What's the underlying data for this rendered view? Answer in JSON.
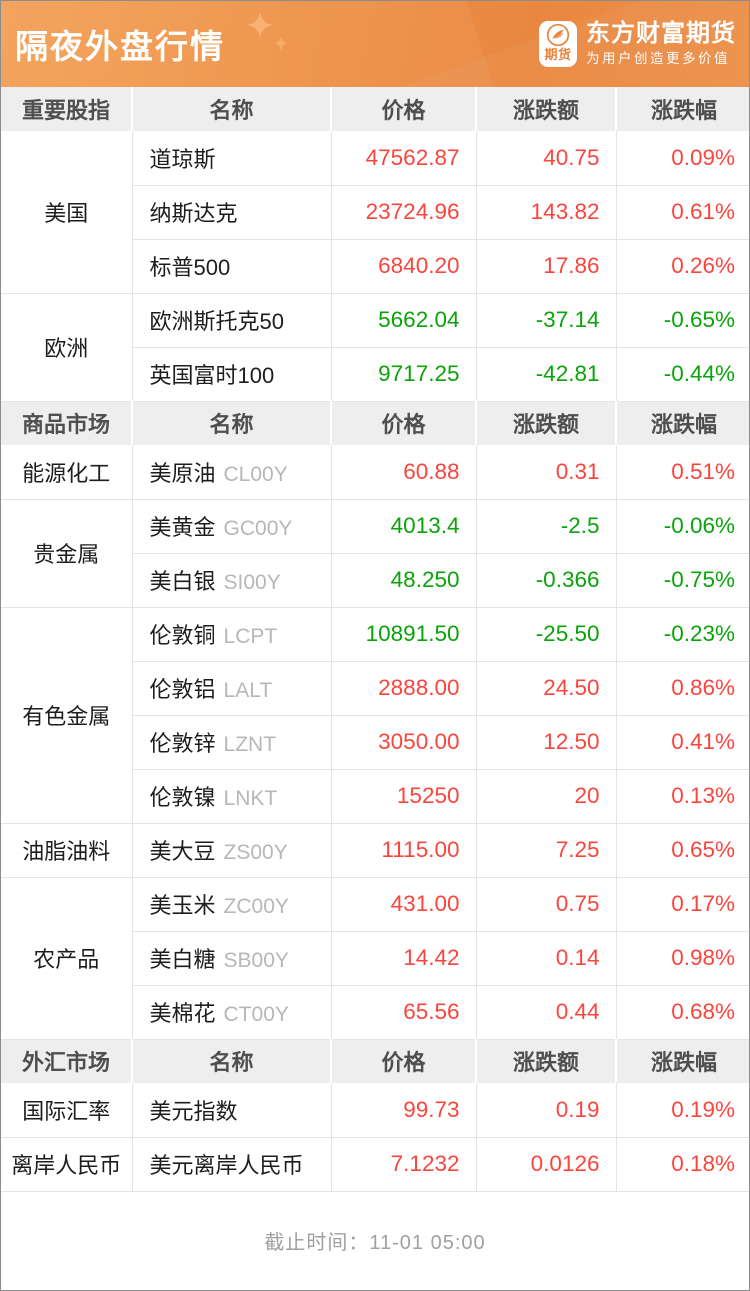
{
  "banner": {
    "title": "隔夜外盘行情",
    "logo": {
      "badge_text": "期货",
      "brand": "东方财富期货",
      "slogan": "为用户创造更多价值"
    }
  },
  "columns": {
    "name": "名称",
    "price": "价格",
    "change": "涨跌额",
    "pct": "涨跌幅"
  },
  "colors": {
    "up": "#fa453d",
    "down": "#0aa30a",
    "banner_orange": "#ee9247",
    "header_gray": "#eeeeee"
  },
  "sections": [
    {
      "label": "重要股指",
      "groups": [
        {
          "category": "美国",
          "rows": [
            {
              "name": "道琼斯",
              "code": "",
              "price": "47562.87",
              "change": "40.75",
              "pct": "0.09%",
              "dir": "up"
            },
            {
              "name": "纳斯达克",
              "code": "",
              "price": "23724.96",
              "change": "143.82",
              "pct": "0.61%",
              "dir": "up"
            },
            {
              "name": "标普500",
              "code": "",
              "price": "6840.20",
              "change": "17.86",
              "pct": "0.26%",
              "dir": "up"
            }
          ]
        },
        {
          "category": "欧洲",
          "rows": [
            {
              "name": "欧洲斯托克50",
              "code": "",
              "price": "5662.04",
              "change": "-37.14",
              "pct": "-0.65%",
              "dir": "down"
            },
            {
              "name": "英国富时100",
              "code": "",
              "price": "9717.25",
              "change": "-42.81",
              "pct": "-0.44%",
              "dir": "down"
            }
          ]
        }
      ]
    },
    {
      "label": "商品市场",
      "groups": [
        {
          "category": "能源化工",
          "rows": [
            {
              "name": "美原油",
              "code": "CL00Y",
              "price": "60.88",
              "change": "0.31",
              "pct": "0.51%",
              "dir": "up"
            }
          ]
        },
        {
          "category": "贵金属",
          "rows": [
            {
              "name": "美黄金",
              "code": "GC00Y",
              "price": "4013.4",
              "change": "-2.5",
              "pct": "-0.06%",
              "dir": "down"
            },
            {
              "name": "美白银",
              "code": "SI00Y",
              "price": "48.250",
              "change": "-0.366",
              "pct": "-0.75%",
              "dir": "down"
            }
          ]
        },
        {
          "category": "有色金属",
          "rows": [
            {
              "name": "伦敦铜",
              "code": "LCPT",
              "price": "10891.50",
              "change": "-25.50",
              "pct": "-0.23%",
              "dir": "down"
            },
            {
              "name": "伦敦铝",
              "code": "LALT",
              "price": "2888.00",
              "change": "24.50",
              "pct": "0.86%",
              "dir": "up"
            },
            {
              "name": "伦敦锌",
              "code": "LZNT",
              "price": "3050.00",
              "change": "12.50",
              "pct": "0.41%",
              "dir": "up"
            },
            {
              "name": "伦敦镍",
              "code": "LNKT",
              "price": "15250",
              "change": "20",
              "pct": "0.13%",
              "dir": "up"
            }
          ]
        },
        {
          "category": "油脂油料",
          "rows": [
            {
              "name": "美大豆",
              "code": "ZS00Y",
              "price": "1115.00",
              "change": "7.25",
              "pct": "0.65%",
              "dir": "up"
            }
          ]
        },
        {
          "category": "农产品",
          "rows": [
            {
              "name": "美玉米",
              "code": "ZC00Y",
              "price": "431.00",
              "change": "0.75",
              "pct": "0.17%",
              "dir": "up"
            },
            {
              "name": "美白糖",
              "code": "SB00Y",
              "price": "14.42",
              "change": "0.14",
              "pct": "0.98%",
              "dir": "up"
            },
            {
              "name": "美棉花",
              "code": "CT00Y",
              "price": "65.56",
              "change": "0.44",
              "pct": "0.68%",
              "dir": "up"
            }
          ]
        }
      ]
    },
    {
      "label": "外汇市场",
      "groups": [
        {
          "category": "国际汇率",
          "rows": [
            {
              "name": "美元指数",
              "code": "",
              "price": "99.73",
              "change": "0.19",
              "pct": "0.19%",
              "dir": "up"
            }
          ]
        },
        {
          "category": "离岸人民币",
          "rows": [
            {
              "name": "美元离岸人民币",
              "code": "",
              "price": "7.1232",
              "change": "0.0126",
              "pct": "0.18%",
              "dir": "up"
            }
          ]
        }
      ]
    }
  ],
  "footer": {
    "text": "截止时间：11-01 05:00"
  }
}
